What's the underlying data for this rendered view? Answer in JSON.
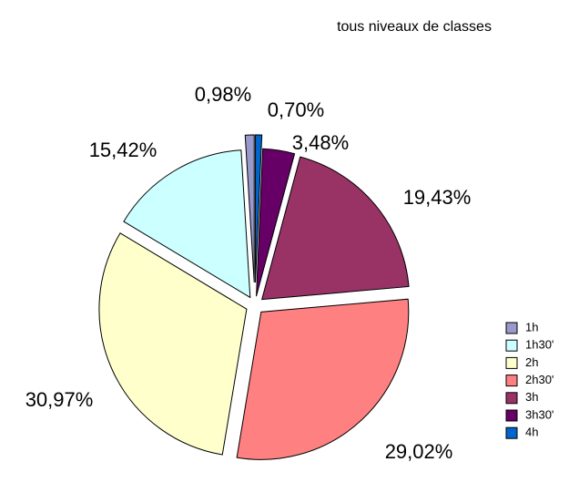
{
  "chart_data": {
    "type": "pie",
    "title": "tous niveaux de classes",
    "categories": [
      "1h",
      "1h30'",
      "2h",
      "2h30'",
      "3h",
      "3h30'",
      "4h"
    ],
    "values": [
      0.98,
      15.42,
      30.97,
      29.02,
      19.43,
      3.48,
      0.7
    ],
    "value_labels": [
      "0,98%",
      "15,42%",
      "30,97%",
      "29,02%",
      "19,43%",
      "3,48%",
      "0,70%"
    ],
    "colors": [
      "#9999cc",
      "#ccffff",
      "#ffffcc",
      "#ff8080",
      "#993366",
      "#660066",
      "#0066cc"
    ],
    "legend": "right"
  }
}
